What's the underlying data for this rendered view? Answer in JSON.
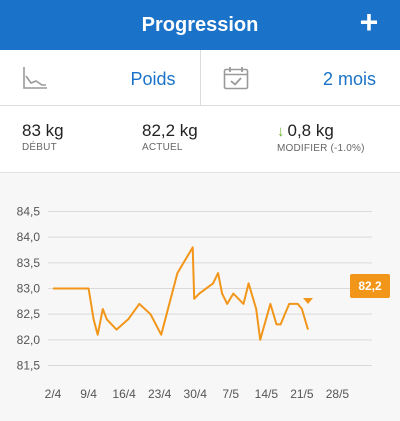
{
  "header": {
    "title": "Progression",
    "add_label": "+"
  },
  "selectors": {
    "metric": {
      "icon": "line-chart-icon",
      "value": "Poids"
    },
    "period": {
      "icon": "calendar-check-icon",
      "value": "2 mois"
    }
  },
  "stats": {
    "start": {
      "value": "83 kg",
      "label": "DÉBUT"
    },
    "current": {
      "value": "82,2 kg",
      "label": "ACTUEL"
    },
    "change": {
      "icon": "down-arrow-icon",
      "value": "0,8 kg",
      "label": "MODIFIER (-1.0%)"
    }
  },
  "colors": {
    "header": "#1a73c8",
    "line": "#f2961a",
    "accent_text": "#1a73c8",
    "down_arrow": "#6bb52a"
  },
  "chart_data": {
    "type": "line",
    "y_tick_labels": [
      "81,5",
      "82,0",
      "82,5",
      "83,0",
      "83,5",
      "84,0",
      "84,5"
    ],
    "x_tick_labels": [
      "2/4",
      "9/4",
      "16/4",
      "23/4",
      "30/4",
      "7/5",
      "14/5",
      "21/5",
      "28/5"
    ],
    "ylim": [
      81.5,
      84.5
    ],
    "xlim": [
      0,
      63
    ],
    "grid": true,
    "series": [
      {
        "points": [
          [
            0,
            83.0
          ],
          [
            7,
            83.0
          ],
          [
            8,
            82.4
          ],
          [
            8.8,
            82.1
          ],
          [
            9.8,
            82.6
          ],
          [
            10.6,
            82.4
          ],
          [
            12.5,
            82.2
          ],
          [
            14.8,
            82.4
          ],
          [
            17,
            82.7
          ],
          [
            19.2,
            82.5
          ],
          [
            21.3,
            82.1
          ],
          [
            24.5,
            83.3
          ],
          [
            27.5,
            83.8
          ],
          [
            27.8,
            82.8
          ],
          [
            28.8,
            82.9
          ],
          [
            31.5,
            83.1
          ],
          [
            32.5,
            83.3
          ],
          [
            33.3,
            82.9
          ],
          [
            34.3,
            82.7
          ],
          [
            35.5,
            82.9
          ],
          [
            37.5,
            82.7
          ],
          [
            38.5,
            83.1
          ],
          [
            40,
            82.6
          ],
          [
            40.8,
            82.0
          ],
          [
            42.8,
            82.7
          ],
          [
            44,
            82.3
          ],
          [
            44.8,
            82.3
          ],
          [
            46.5,
            82.7
          ],
          [
            48.2,
            82.7
          ],
          [
            49,
            82.6
          ],
          [
            50.2,
            82.2
          ]
        ],
        "last_value_label": "82,2"
      }
    ]
  }
}
